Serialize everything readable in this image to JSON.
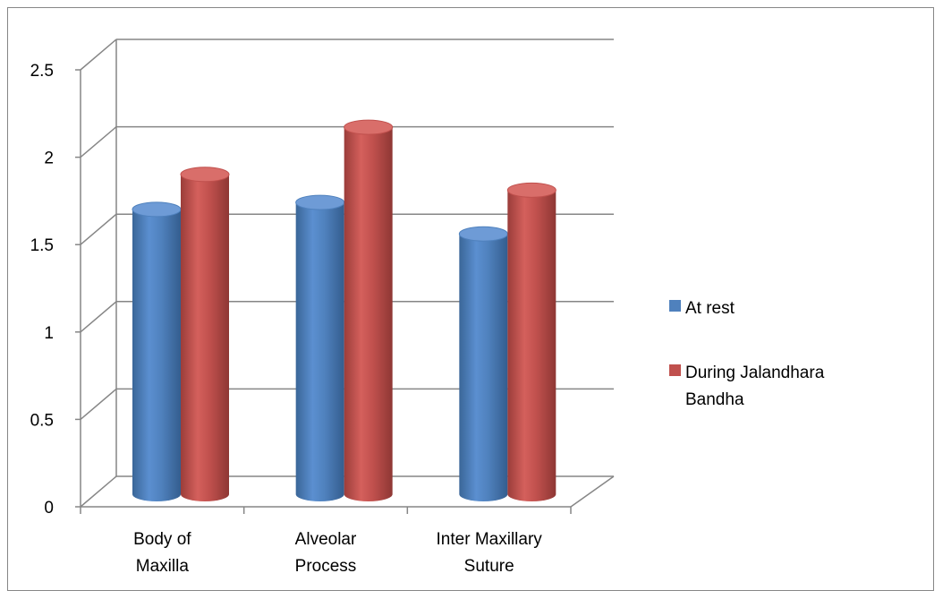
{
  "chart_data": {
    "type": "bar",
    "categories": [
      [
        "Body of",
        "Maxilla"
      ],
      [
        "Alveolar",
        "Process"
      ],
      [
        "Inter Maxillary",
        "Suture"
      ]
    ],
    "series": [
      {
        "name": "At rest",
        "values": [
          1.65,
          1.69,
          1.51
        ],
        "color": "#4F81BD"
      },
      {
        "name": [
          "During Jalandhara",
          "Bandha"
        ],
        "values": [
          1.83,
          2.1,
          1.74
        ],
        "color": "#C0504D"
      }
    ],
    "yticks": [
      "0",
      "0.5",
      "1",
      "1.5",
      "2",
      "2.5"
    ],
    "ylim": [
      0,
      2.5
    ],
    "grid": true,
    "legend": "right",
    "title": "",
    "xlabel": "",
    "ylabel": ""
  }
}
